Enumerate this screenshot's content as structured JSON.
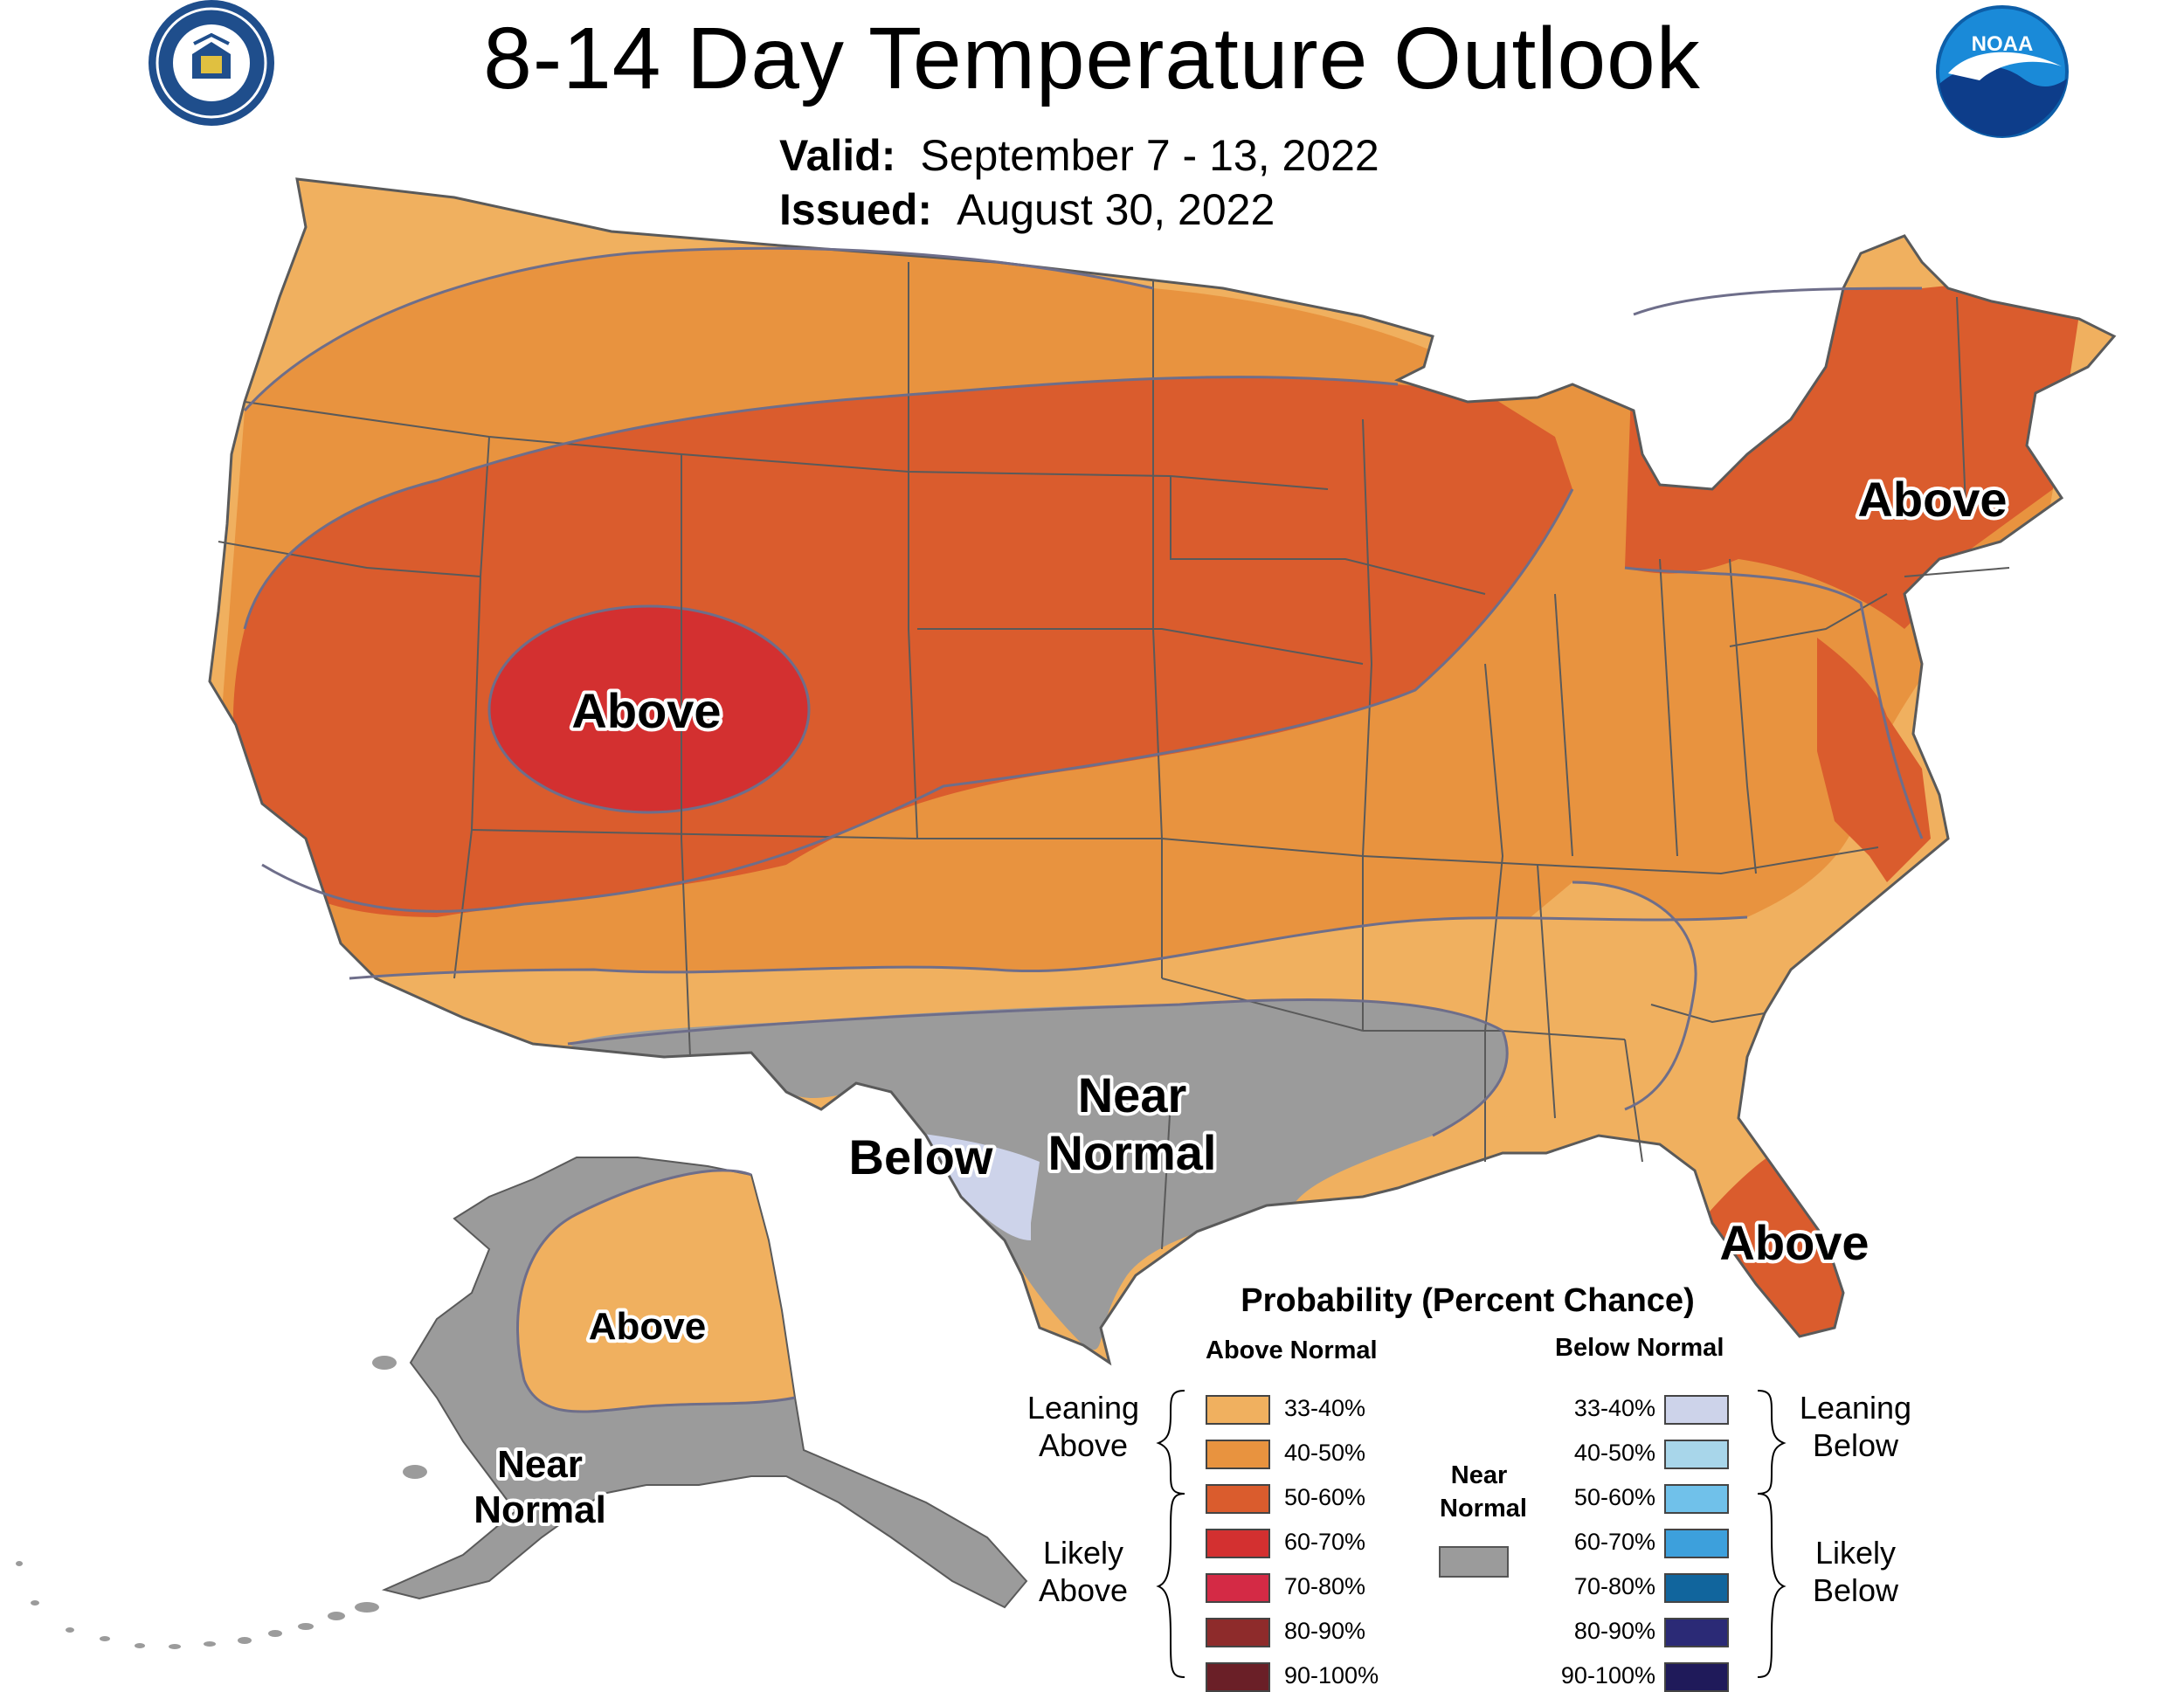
{
  "title": "8-14 Day Temperature Outlook",
  "valid": {
    "label": "Valid:",
    "value": "September 7 - 13, 2022"
  },
  "issued": {
    "label": "Issued:",
    "value": "August 30, 2022"
  },
  "logos": {
    "left": "doc-seal-icon",
    "right": "noaa-logo-icon",
    "noaa_text": "NOAA"
  },
  "map_labels": {
    "southwest": "Above",
    "northeast": "Above",
    "florida": "Above",
    "texas_below": "Below",
    "texas_near_1": "Near",
    "texas_near_2": "Normal",
    "alaska_above": "Above",
    "alaska_near_1": "Near",
    "alaska_near_2": "Normal"
  },
  "colors": {
    "above_33_40": "#f0b05f",
    "above_40_50": "#e8933f",
    "above_50_60": "#da5c2d",
    "above_60_70": "#d33030",
    "above_70_80": "#d42a45",
    "above_80_90": "#8e2b2b",
    "above_90_100": "#6a1f27",
    "near_normal": "#9b9b9b",
    "below_33_40": "#cdd3ea",
    "below_40_50": "#a8d6ea",
    "below_50_60": "#70c1ea",
    "below_60_70": "#3da0dc",
    "below_70_80": "#11659d",
    "below_80_90": "#2b2a76",
    "below_90_100": "#1f1a5a",
    "water": "#ffffff",
    "boundary": "#5a5a5a"
  },
  "legend": {
    "title": "Probability (Percent Chance)",
    "above_header": "Above Normal",
    "below_header": "Below Normal",
    "near_header_1": "Near",
    "near_header_2": "Normal",
    "leaning_above_1": "Leaning",
    "leaning_above_2": "Above",
    "likely_above_1": "Likely",
    "likely_above_2": "Above",
    "leaning_below_1": "Leaning",
    "leaning_below_2": "Below",
    "likely_below_1": "Likely",
    "likely_below_2": "Below",
    "above_bins": [
      "33-40%",
      "40-50%",
      "50-60%",
      "60-70%",
      "70-80%",
      "80-90%",
      "90-100%"
    ],
    "below_bins": [
      "33-40%",
      "40-50%",
      "50-60%",
      "60-70%",
      "70-80%",
      "80-90%",
      "90-100%"
    ]
  }
}
